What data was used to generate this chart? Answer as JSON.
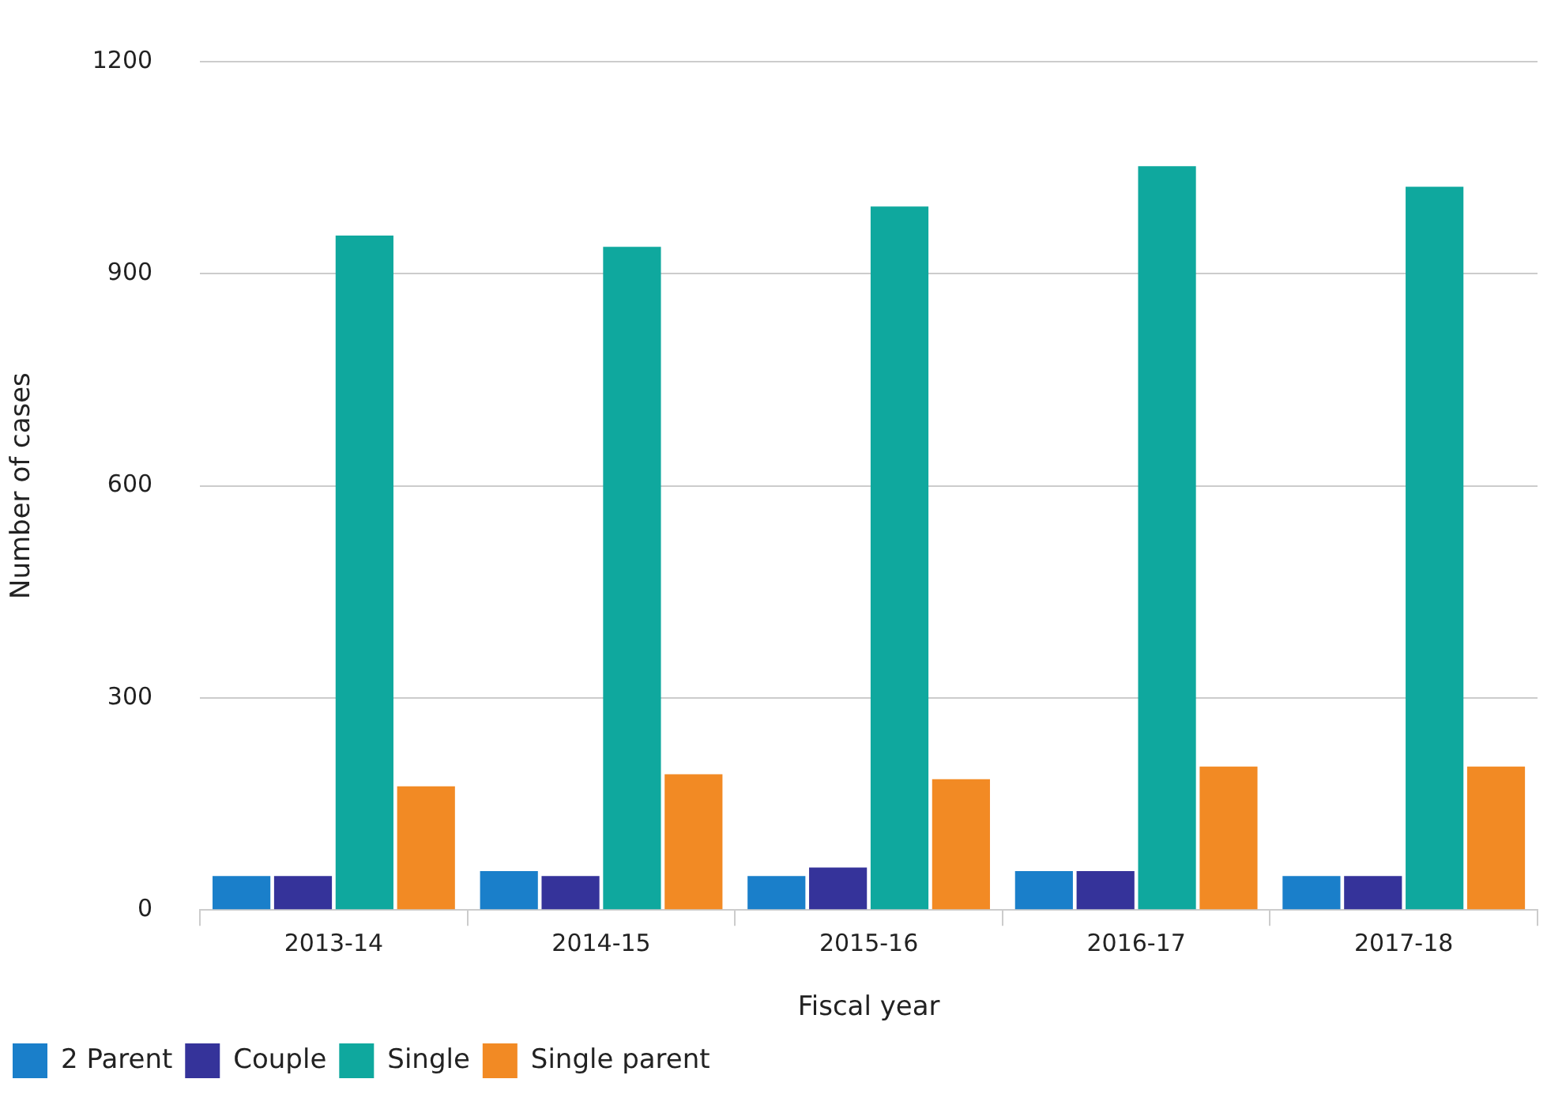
{
  "chart_data": {
    "type": "bar",
    "xlabel": "Fiscal year",
    "ylabel": "Number of cases",
    "categories": [
      "2013-14",
      "2014-15",
      "2015-16",
      "2016-17",
      "2017-18"
    ],
    "series": [
      {
        "name": "2 Parent",
        "color": "#1a7fca",
        "values": [
          48,
          55,
          48,
          55,
          48
        ]
      },
      {
        "name": "Couple",
        "color": "#35339a",
        "values": [
          48,
          48,
          60,
          55,
          48
        ]
      },
      {
        "name": "Single",
        "color": "#0fa89e",
        "values": [
          954,
          938,
          995,
          1052,
          1023
        ]
      },
      {
        "name": "Single parent",
        "color": "#f28a24",
        "values": [
          175,
          192,
          185,
          203,
          203
        ]
      }
    ],
    "ylim": [
      0,
      1200
    ],
    "yticks": [
      0,
      300,
      600,
      900,
      1200
    ],
    "grid": "y",
    "legend": "bottom left"
  }
}
